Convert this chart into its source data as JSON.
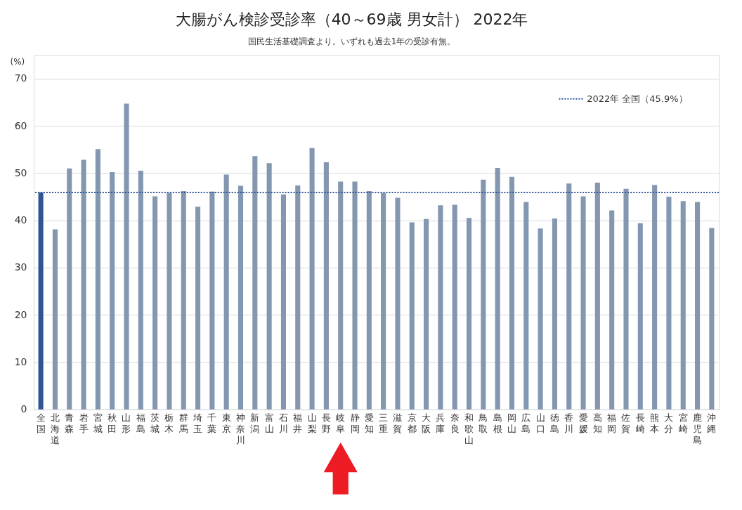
{
  "chart_data": {
    "type": "bar",
    "title": "大腸がん検診受診率（40～69歳 男女計） 2022年",
    "subtitle": "国民生活基礎調査より。いずれも過去1年の受診有無。",
    "ylabel": "(%)",
    "categories": [
      "全国",
      "北海道",
      "青森",
      "岩手",
      "宮城",
      "秋田",
      "山形",
      "福島",
      "茨城",
      "栃木",
      "群馬",
      "埼玉",
      "千葉",
      "東京",
      "神奈川",
      "新潟",
      "富山",
      "石川",
      "福井",
      "山梨",
      "長野",
      "岐阜",
      "静岡",
      "愛知",
      "三重",
      "滋賀",
      "京都",
      "大阪",
      "兵庫",
      "奈良",
      "和歌山",
      "鳥取",
      "島根",
      "岡山",
      "広島",
      "山口",
      "徳島",
      "香川",
      "愛媛",
      "高知",
      "福岡",
      "佐賀",
      "長崎",
      "熊本",
      "大分",
      "宮崎",
      "鹿児島",
      "沖縄"
    ],
    "values": [
      45.9,
      38.1,
      51.0,
      52.8,
      55.1,
      50.2,
      64.7,
      50.5,
      45.1,
      45.8,
      46.2,
      42.9,
      46.1,
      49.7,
      47.3,
      53.6,
      52.1,
      45.5,
      47.4,
      55.3,
      52.3,
      48.2,
      48.2,
      46.2,
      45.8,
      44.8,
      39.6,
      40.3,
      43.2,
      43.3,
      40.5,
      48.6,
      51.1,
      49.2,
      43.9,
      38.3,
      40.4,
      47.8,
      45.1,
      48.0,
      42.1,
      46.7,
      39.4,
      47.5,
      45.0,
      44.1,
      43.9,
      38.4
    ],
    "colors": [
      "#2f5597",
      "#8497b0",
      "#8497b0",
      "#8497b0",
      "#8497b0",
      "#8497b0",
      "#8497b0",
      "#8497b0",
      "#8497b0",
      "#8497b0",
      "#8497b0",
      "#8497b0",
      "#8497b0",
      "#8497b0",
      "#8497b0",
      "#8497b0",
      "#8497b0",
      "#8497b0",
      "#8497b0",
      "#8497b0",
      "#8497b0",
      "#8497b0",
      "#8497b0",
      "#8497b0",
      "#8497b0",
      "#8497b0",
      "#8497b0",
      "#8497b0",
      "#8497b0",
      "#8497b0",
      "#8497b0",
      "#8497b0",
      "#8497b0",
      "#8497b0",
      "#8497b0",
      "#8497b0",
      "#8497b0",
      "#8497b0",
      "#8497b0",
      "#8497b0",
      "#8497b0",
      "#8497b0",
      "#8497b0",
      "#8497b0",
      "#8497b0",
      "#8497b0",
      "#8497b0",
      "#8497b0"
    ],
    "ylim": [
      0,
      75
    ],
    "yticks": [
      0,
      10,
      20,
      30,
      40,
      50,
      60,
      70
    ],
    "grid": "y",
    "legend": "top right",
    "ref_lines": [
      {
        "axis": "y",
        "value": 45.9,
        "label": "2022年 全国（45.9%）",
        "color": "#2f5597",
        "line_style": "dotted"
      }
    ]
  }
}
